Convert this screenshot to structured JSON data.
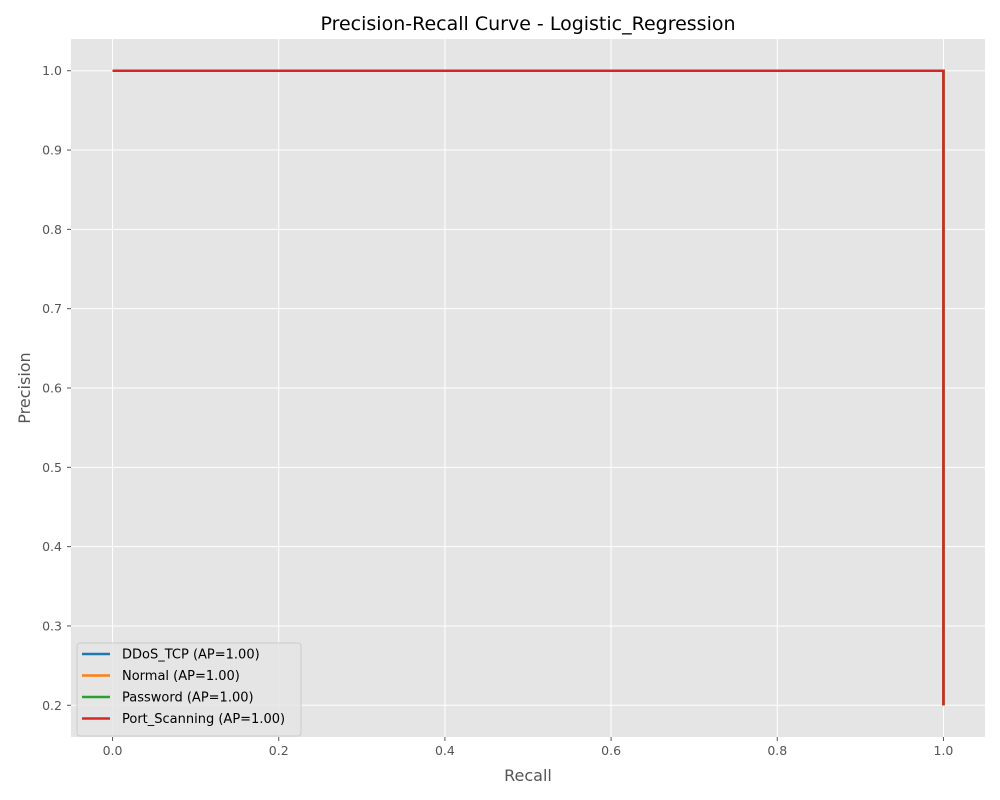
{
  "chart_data": {
    "type": "line",
    "title": "Precision-Recall Curve - Logistic_Regression",
    "xlabel": "Recall",
    "ylabel": "Precision",
    "xlim": [
      -0.05,
      1.05
    ],
    "ylim": [
      0.16,
      1.04
    ],
    "xticks": [
      0.0,
      0.2,
      0.4,
      0.6,
      0.8,
      1.0
    ],
    "xtick_labels": [
      "0.0",
      "0.2",
      "0.4",
      "0.6",
      "0.8",
      "1.0"
    ],
    "yticks": [
      0.2,
      0.3,
      0.4,
      0.5,
      0.6,
      0.7,
      0.8,
      0.9,
      1.0
    ],
    "ytick_labels": [
      "0.2",
      "0.3",
      "0.4",
      "0.5",
      "0.6",
      "0.7",
      "0.8",
      "0.9",
      "1.0"
    ],
    "grid": true,
    "background": "#e5e5e5",
    "legend_position": "lower-left",
    "series": [
      {
        "name": "DDoS_TCP (AP=1.00)",
        "color": "#1f77b4",
        "x": [
          0.0,
          1.0,
          1.0
        ],
        "y": [
          1.0,
          1.0,
          0.2
        ]
      },
      {
        "name": "Normal (AP=1.00)",
        "color": "#ff7f0e",
        "x": [
          0.0,
          1.0,
          1.0
        ],
        "y": [
          1.0,
          1.0,
          0.2
        ]
      },
      {
        "name": "Password (AP=1.00)",
        "color": "#2ca02c",
        "x": [
          0.0,
          1.0,
          1.0
        ],
        "y": [
          1.0,
          1.0,
          0.2
        ]
      },
      {
        "name": "Port_Scanning (AP=1.00)",
        "color": "#d62728",
        "x": [
          0.0,
          1.0,
          1.0
        ],
        "y": [
          1.0,
          1.0,
          0.2
        ]
      }
    ]
  }
}
